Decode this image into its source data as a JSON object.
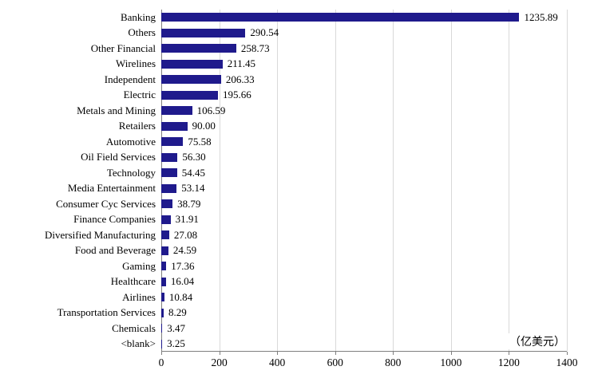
{
  "chart_data": {
    "type": "bar",
    "orientation": "horizontal",
    "title": "",
    "xlabel": "",
    "ylabel": "",
    "unit_label": "（亿美元）",
    "bar_color": "#1F1A8C",
    "gridline_color": "#d9d9d9",
    "axis_color": "#7f7f7f",
    "xlim": [
      0,
      1400
    ],
    "xticks": [
      0,
      200,
      400,
      600,
      800,
      1000,
      1200,
      1400
    ],
    "grid": true,
    "legend": "none",
    "categories": [
      "Banking",
      "Others",
      "Other Financial",
      "Wirelines",
      "Independent",
      "Electric",
      "Metals and Mining",
      "Retailers",
      "Automotive",
      "Oil Field Services",
      "Technology",
      "Media Entertainment",
      "Consumer Cyc Services",
      "Finance Companies",
      "Diversified Manufacturing",
      "Food and Beverage",
      "Gaming",
      "Healthcare",
      "Airlines",
      "Transportation Services",
      "Chemicals",
      "<blank>"
    ],
    "values": [
      1235.89,
      290.54,
      258.73,
      211.45,
      206.33,
      195.66,
      106.59,
      90.0,
      75.58,
      56.3,
      54.45,
      53.14,
      38.79,
      31.91,
      27.08,
      24.59,
      17.36,
      16.04,
      10.84,
      8.29,
      3.47,
      3.25
    ],
    "value_labels": [
      "1235.89",
      "290.54",
      "258.73",
      "211.45",
      "206.33",
      "195.66",
      "106.59",
      "90.00",
      "75.58",
      "56.30",
      "54.45",
      "53.14",
      "38.79",
      "31.91",
      "27.08",
      "24.59",
      "17.36",
      "16.04",
      "10.84",
      "8.29",
      "3.47",
      "3.25"
    ]
  }
}
